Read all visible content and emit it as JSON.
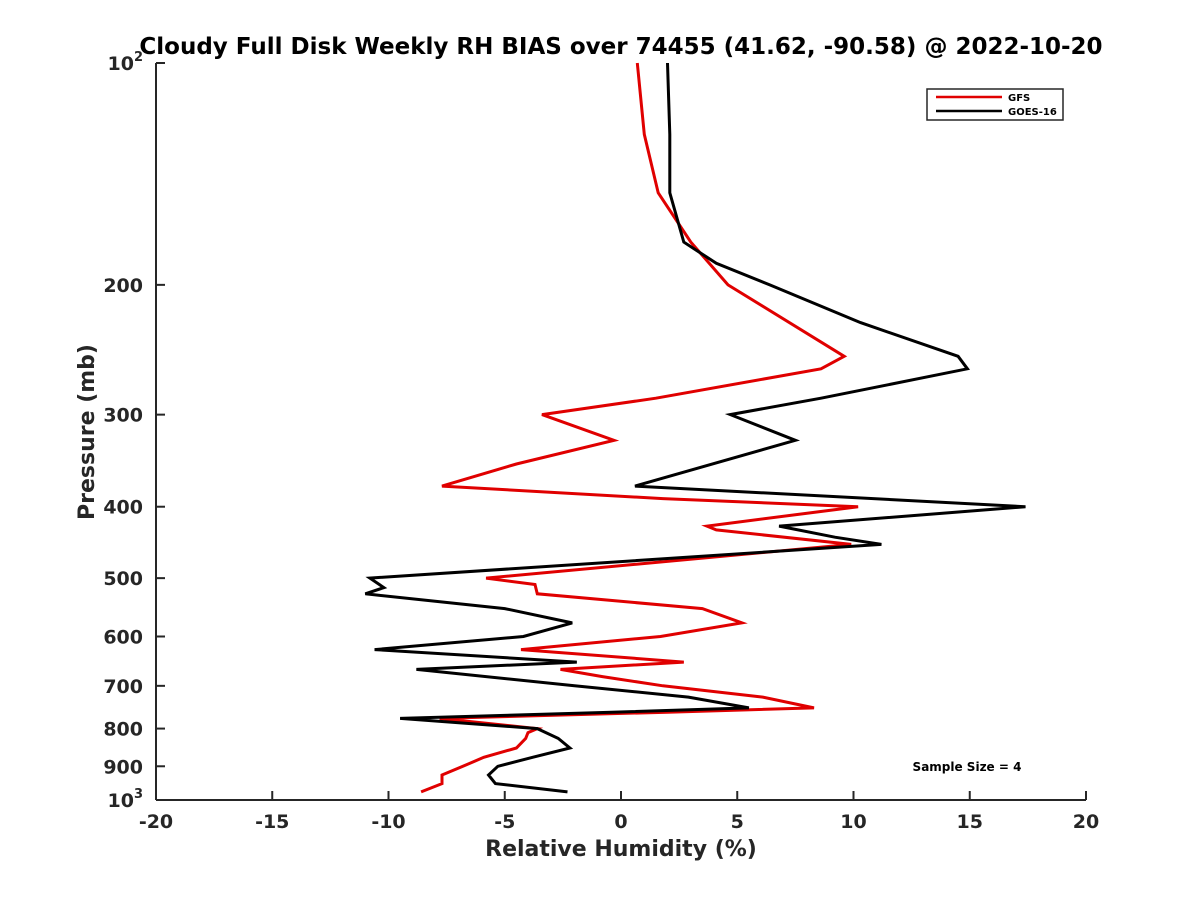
{
  "chart_data": {
    "type": "line",
    "title": "Cloudy Full Disk Weekly RH BIAS over 74455 (41.62, -90.58) @ 2022-10-20",
    "xlabel": "Relative Humidity (%)",
    "ylabel": "Pressure (mb)",
    "xlim": [
      -20,
      20
    ],
    "ylim": [
      100,
      1000
    ],
    "y_scale": "log",
    "y_reversed": true,
    "grid": false,
    "legend_position": "top-right",
    "x_ticks": [
      "-20",
      "-15",
      "-10",
      "-5",
      "0",
      "5",
      "10",
      "15",
      "20"
    ],
    "y_ticks": [
      {
        "value": 100,
        "base": "10",
        "exp": "2"
      },
      {
        "value": 200,
        "label": "200"
      },
      {
        "value": 300,
        "label": "300"
      },
      {
        "value": 400,
        "label": "400"
      },
      {
        "value": 500,
        "label": "500"
      },
      {
        "value": 600,
        "label": "600"
      },
      {
        "value": 700,
        "label": "700"
      },
      {
        "value": 800,
        "label": "800"
      },
      {
        "value": 900,
        "label": "900"
      },
      {
        "value": 1000,
        "base": "10",
        "exp": "3"
      }
    ],
    "annotation": "Sample Size = 4",
    "series": [
      {
        "name": "GFS",
        "color": "#e00000",
        "points": [
          [
            0.7,
            100
          ],
          [
            1.0,
            125
          ],
          [
            1.6,
            150
          ],
          [
            3.0,
            175
          ],
          [
            4.6,
            200
          ],
          [
            9.6,
            250
          ],
          [
            8.6,
            260
          ],
          [
            1.5,
            285
          ],
          [
            -3.4,
            300
          ],
          [
            -0.3,
            325
          ],
          [
            -4.5,
            350
          ],
          [
            -7.7,
            375
          ],
          [
            1.8,
            390
          ],
          [
            10.2,
            400
          ],
          [
            3.7,
            425
          ],
          [
            4.1,
            430
          ],
          [
            9.9,
            450
          ],
          [
            -5.8,
            500
          ],
          [
            -3.7,
            510
          ],
          [
            -3.6,
            525
          ],
          [
            3.5,
            550
          ],
          [
            5.2,
            575
          ],
          [
            1.7,
            600
          ],
          [
            -4.3,
            625
          ],
          [
            2.7,
            650
          ],
          [
            -2.6,
            665
          ],
          [
            -0.8,
            680
          ],
          [
            1.8,
            700
          ],
          [
            6.1,
            725
          ],
          [
            8.3,
            750
          ],
          [
            2.0,
            760
          ],
          [
            -7.8,
            775
          ],
          [
            -3.6,
            800
          ],
          [
            -4.0,
            810
          ],
          [
            -4.1,
            825
          ],
          [
            -4.5,
            850
          ],
          [
            -5.9,
            875
          ],
          [
            -6.8,
            900
          ],
          [
            -7.7,
            925
          ],
          [
            -7.7,
            950
          ],
          [
            -8.6,
            975
          ]
        ]
      },
      {
        "name": "GOES-16",
        "color": "#000000",
        "points": [
          [
            2.0,
            100
          ],
          [
            2.1,
            125
          ],
          [
            2.1,
            150
          ],
          [
            2.7,
            175
          ],
          [
            4.1,
            187
          ],
          [
            6.4,
            200
          ],
          [
            10.3,
            225
          ],
          [
            14.5,
            250
          ],
          [
            14.9,
            260
          ],
          [
            8.6,
            285
          ],
          [
            4.7,
            300
          ],
          [
            7.5,
            325
          ],
          [
            0.6,
            375
          ],
          [
            17.4,
            400
          ],
          [
            6.8,
            425
          ],
          [
            9.2,
            440
          ],
          [
            11.2,
            450
          ],
          [
            -10.8,
            500
          ],
          [
            -10.2,
            515
          ],
          [
            -11.0,
            525
          ],
          [
            -5.0,
            550
          ],
          [
            -2.1,
            575
          ],
          [
            -4.2,
            600
          ],
          [
            -10.6,
            625
          ],
          [
            -1.9,
            650
          ],
          [
            -8.8,
            665
          ],
          [
            -2.0,
            700
          ],
          [
            2.9,
            725
          ],
          [
            5.5,
            750
          ],
          [
            -0.4,
            760
          ],
          [
            -9.5,
            775
          ],
          [
            -3.6,
            800
          ],
          [
            -2.7,
            825
          ],
          [
            -2.2,
            850
          ],
          [
            -3.8,
            875
          ],
          [
            -5.3,
            900
          ],
          [
            -5.7,
            925
          ],
          [
            -5.4,
            950
          ],
          [
            -2.3,
            975
          ]
        ]
      }
    ]
  }
}
